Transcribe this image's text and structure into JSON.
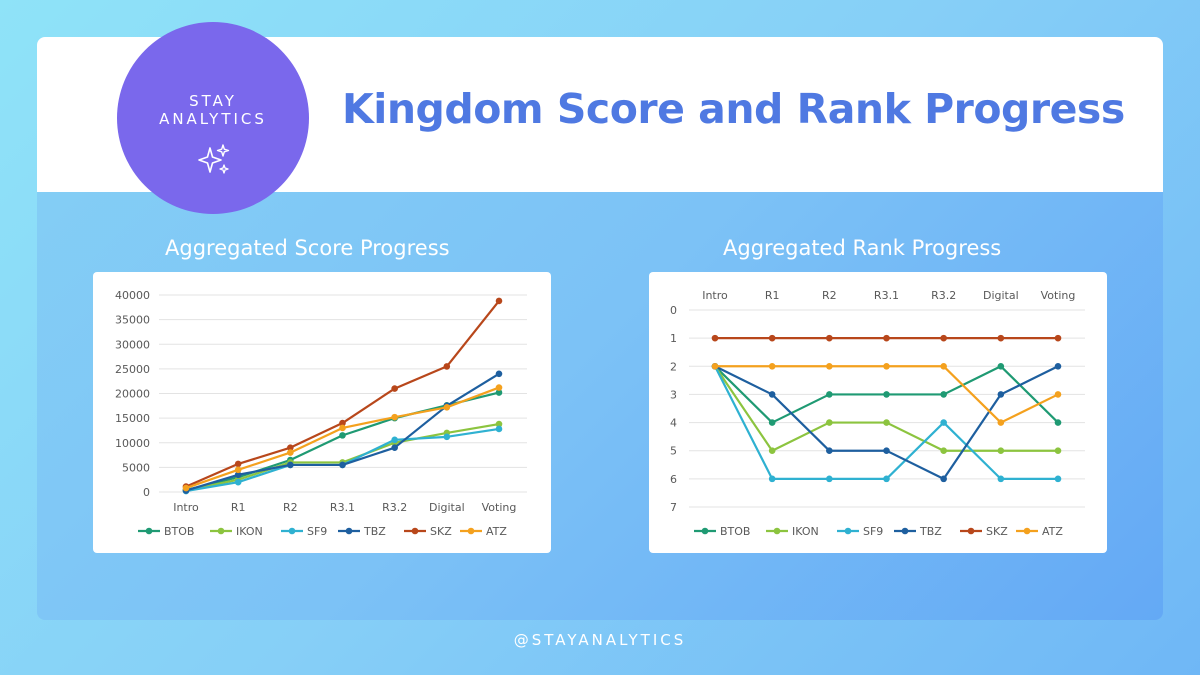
{
  "header": {
    "logo_line1": "STAY",
    "logo_line2": "ANALYTICS",
    "logo_icon": "sparkles-icon",
    "title": "Kingdom Score and Rank Progress"
  },
  "footer": {
    "handle": "@STAYANALYTICS"
  },
  "colors": {
    "BTOB": "#1f9a73",
    "IKON": "#8cc43f",
    "SF9": "#2fb1d1",
    "TBZ": "#1e5f9f",
    "SKZ": "#b8471b",
    "ATZ": "#f4a11e",
    "title": "#4f79e2",
    "logo": "#7a68ec"
  },
  "chart_data": [
    {
      "type": "line",
      "title": "Aggregated Score Progress",
      "categories": [
        "Intro",
        "R1",
        "R2",
        "R3.1",
        "R3.2",
        "Digital",
        "Voting"
      ],
      "ylim": [
        0,
        40000
      ],
      "yticks": [
        0,
        5000,
        10000,
        15000,
        20000,
        25000,
        30000,
        35000,
        40000
      ],
      "grid": true,
      "legend": "bottom",
      "series": [
        {
          "name": "BTOB",
          "values": [
            400,
            3000,
            6500,
            11500,
            15000,
            17600,
            20200
          ]
        },
        {
          "name": "IKON",
          "values": [
            300,
            2500,
            6000,
            6000,
            10000,
            12000,
            13800
          ]
        },
        {
          "name": "SF9",
          "values": [
            200,
            2000,
            5500,
            5500,
            10600,
            11200,
            12800
          ]
        },
        {
          "name": "TBZ",
          "values": [
            300,
            3500,
            5500,
            5500,
            9000,
            17500,
            24000
          ]
        },
        {
          "name": "SKZ",
          "values": [
            1100,
            5700,
            9000,
            14000,
            21000,
            25500,
            38800
          ]
        },
        {
          "name": "ATZ",
          "values": [
            800,
            4500,
            8000,
            13000,
            15200,
            17200,
            21200
          ]
        }
      ]
    },
    {
      "type": "line",
      "title": "Aggregated Rank Progress",
      "categories": [
        "Intro",
        "R1",
        "R2",
        "R3.1",
        "R3.2",
        "Digital",
        "Voting"
      ],
      "ylim": [
        0,
        7
      ],
      "y_reversed": true,
      "yticks": [
        0,
        1,
        2,
        3,
        4,
        5,
        6,
        7
      ],
      "x_axis_position": "top",
      "grid": true,
      "legend": "bottom",
      "series": [
        {
          "name": "BTOB",
          "values": [
            2,
            4,
            3,
            3,
            3,
            2,
            4
          ]
        },
        {
          "name": "IKON",
          "values": [
            2,
            5,
            4,
            4,
            5,
            5,
            5
          ]
        },
        {
          "name": "SF9",
          "values": [
            2,
            6,
            6,
            6,
            4,
            6,
            6
          ]
        },
        {
          "name": "TBZ",
          "values": [
            2,
            3,
            5,
            5,
            6,
            3,
            2
          ]
        },
        {
          "name": "SKZ",
          "values": [
            1,
            1,
            1,
            1,
            1,
            1,
            1
          ]
        },
        {
          "name": "ATZ",
          "values": [
            2,
            2,
            2,
            2,
            2,
            4,
            3
          ]
        }
      ]
    }
  ]
}
